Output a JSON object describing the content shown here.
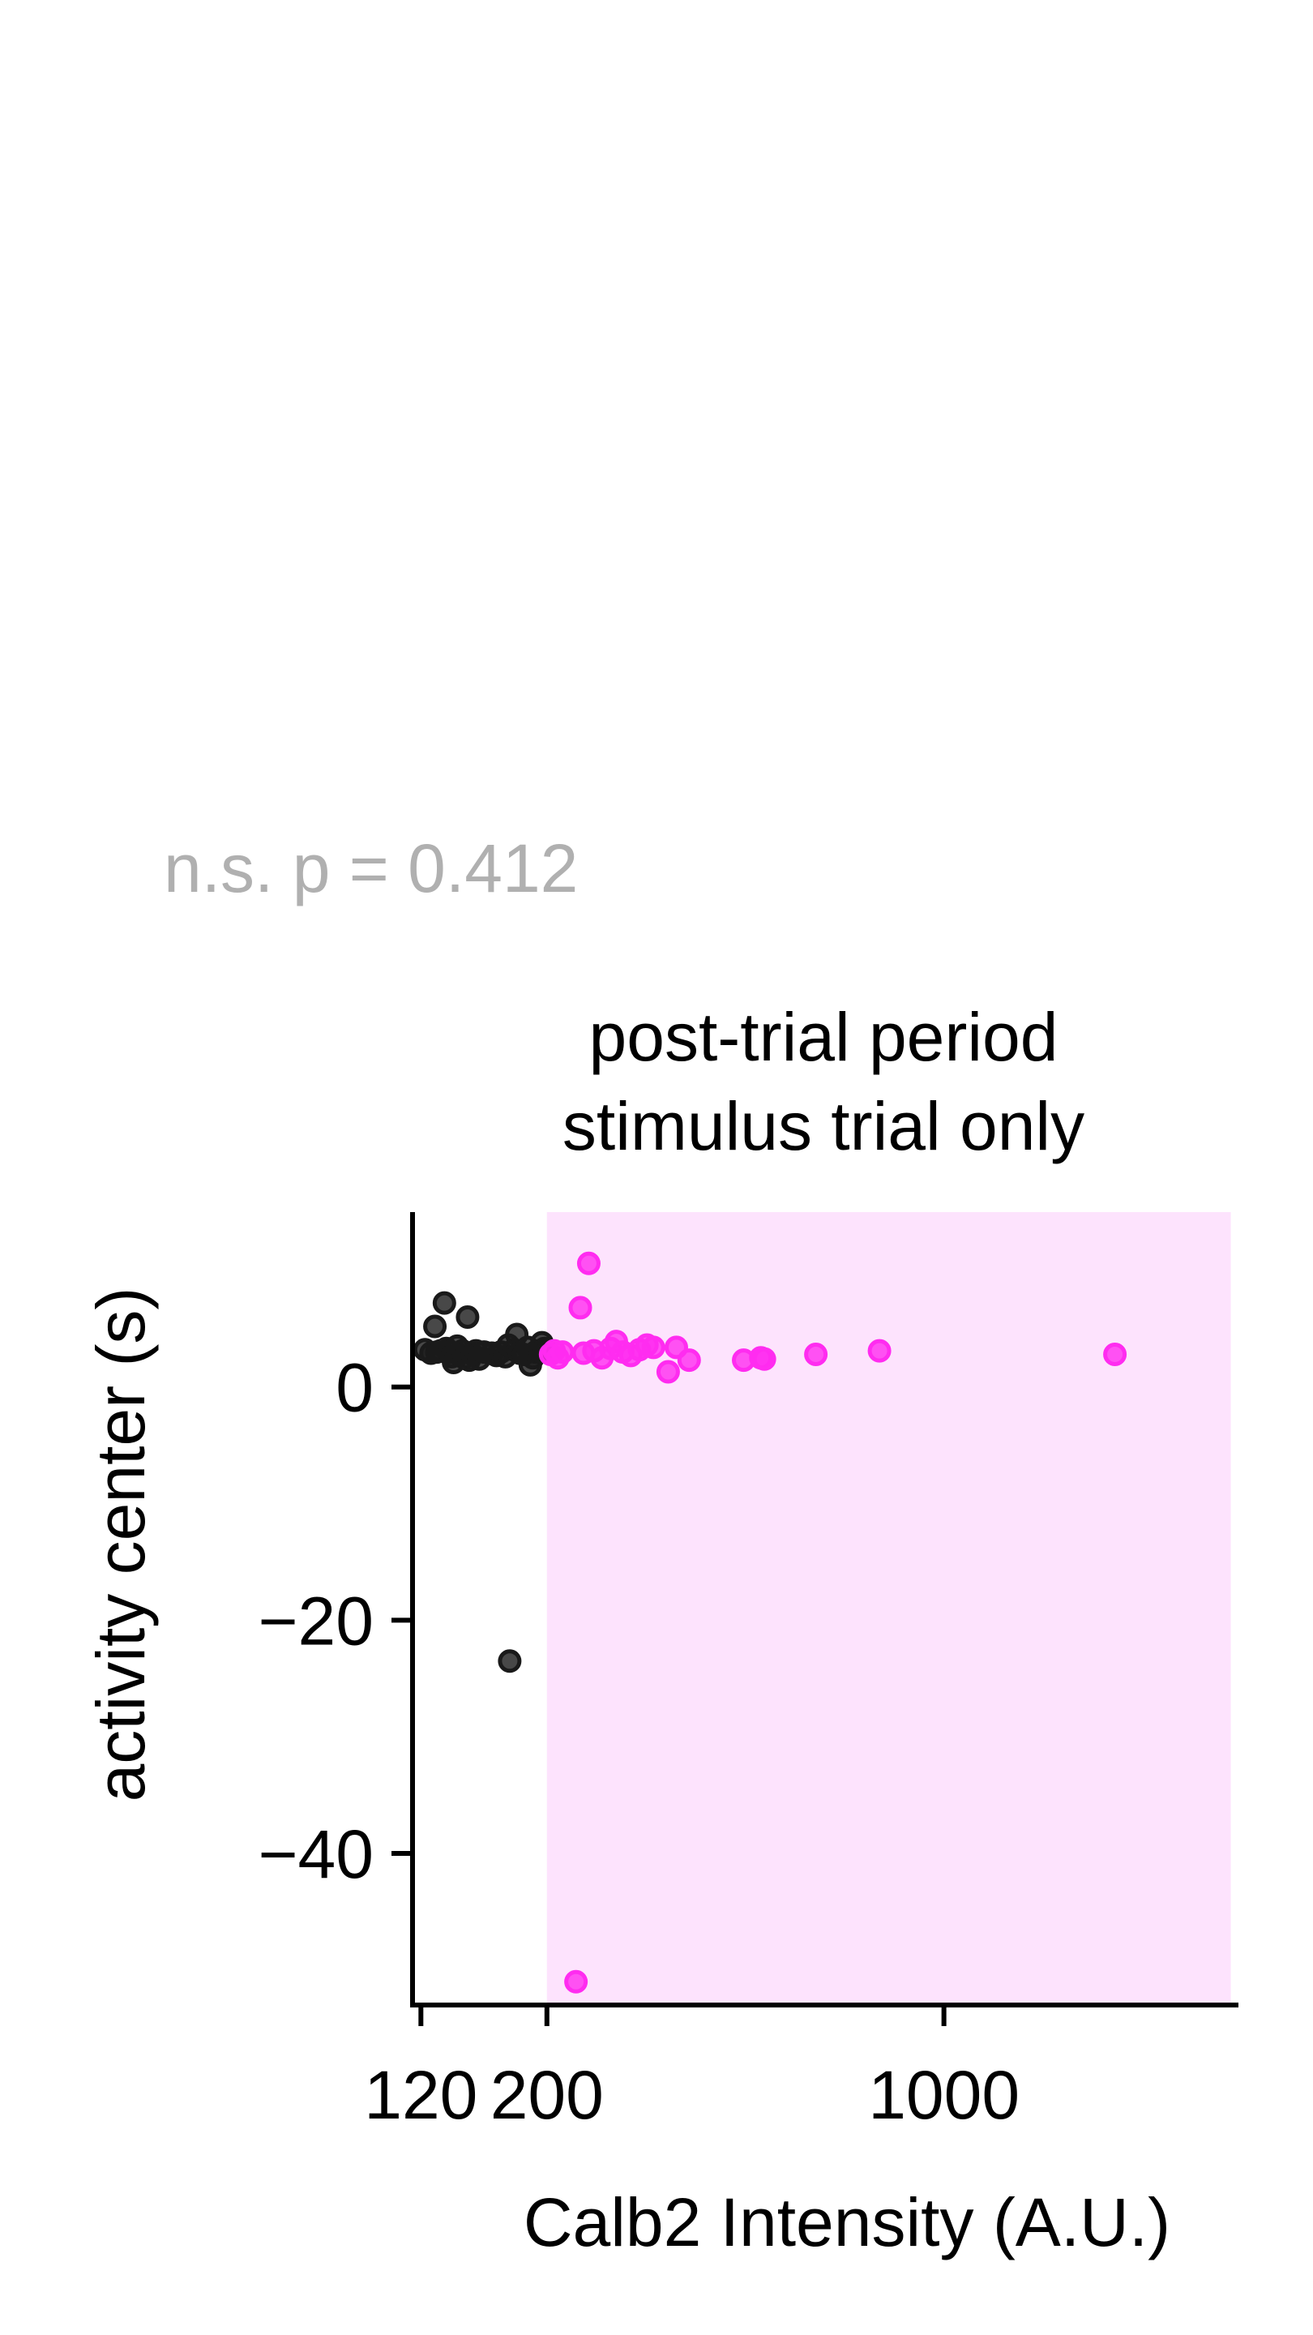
{
  "annotation": "n.s. p = 0.412",
  "colors": {
    "annotation": "#b0b0b0",
    "group_low": "#1a1a1a",
    "group_high": "#ff2cf0",
    "highlight_region": "#fde3fd",
    "axis": "#000000"
  },
  "chart_data": {
    "type": "scatter",
    "title": "post-trial period\nstimulus trial only",
    "title_lines": [
      "post-trial period",
      "stimulus trial only"
    ],
    "xlabel": "Calb2 Intensity (A.U.)",
    "ylabel": "activity center (s)",
    "x_scale": "log",
    "xlim": [
      116,
      3300
    ],
    "ylim": [
      -53,
      15
    ],
    "xticks": [
      120,
      200,
      1000
    ],
    "xtick_labels": [
      "120",
      "200",
      "1000"
    ],
    "yticks": [
      0,
      -20,
      -40
    ],
    "ytick_labels": [
      "0",
      "−20",
      "−40"
    ],
    "grid": false,
    "highlight_region": {
      "x": [
        200,
        3200
      ]
    },
    "series": [
      {
        "color": "#1a1a1a",
        "points": [
          [
            122,
            3.2
          ],
          [
            125,
            2.9
          ],
          [
            127,
            5.2
          ],
          [
            128,
            3.0
          ],
          [
            130,
            3.1
          ],
          [
            132,
            7.2
          ],
          [
            133,
            3.3
          ],
          [
            135,
            3.0
          ],
          [
            136,
            2.6
          ],
          [
            137,
            2.1
          ],
          [
            139,
            3.5
          ],
          [
            140,
            2.8
          ],
          [
            142,
            3.1
          ],
          [
            143,
            2.5
          ],
          [
            145,
            6.0
          ],
          [
            146,
            2.3
          ],
          [
            148,
            2.8
          ],
          [
            150,
            3.1
          ],
          [
            152,
            2.4
          ],
          [
            155,
            3.0
          ],
          [
            160,
            2.9
          ],
          [
            163,
            2.7
          ],
          [
            166,
            3.0
          ],
          [
            169,
            2.6
          ],
          [
            171,
            3.6
          ],
          [
            172,
            -23.5
          ],
          [
            175,
            3.2
          ],
          [
            177,
            4.5
          ],
          [
            179,
            2.9
          ],
          [
            182,
            2.8
          ],
          [
            185,
            3.4
          ],
          [
            187,
            1.9
          ],
          [
            189,
            2.5
          ],
          [
            191,
            3.0
          ],
          [
            194,
            3.1
          ],
          [
            196,
            3.8
          ],
          [
            198,
            3.3
          ],
          [
            200,
            3.0
          ]
        ]
      },
      {
        "color": "#ff2cf0",
        "points": [
          [
            203,
            2.8
          ],
          [
            206,
            3.1
          ],
          [
            209,
            2.5
          ],
          [
            213,
            3.0
          ],
          [
            225,
            -51.0
          ],
          [
            229,
            6.8
          ],
          [
            232,
            2.9
          ],
          [
            237,
            10.6
          ],
          [
            242,
            3.1
          ],
          [
            250,
            2.5
          ],
          [
            259,
            3.3
          ],
          [
            265,
            3.9
          ],
          [
            272,
            3.0
          ],
          [
            281,
            2.7
          ],
          [
            291,
            3.2
          ],
          [
            300,
            3.6
          ],
          [
            308,
            3.4
          ],
          [
            327,
            1.3
          ],
          [
            338,
            3.4
          ],
          [
            356,
            2.3
          ],
          [
            444,
            2.3
          ],
          [
            476,
            2.5
          ],
          [
            483,
            2.4
          ],
          [
            595,
            2.8
          ],
          [
            770,
            3.1
          ],
          [
            2000,
            2.8
          ]
        ]
      }
    ]
  }
}
